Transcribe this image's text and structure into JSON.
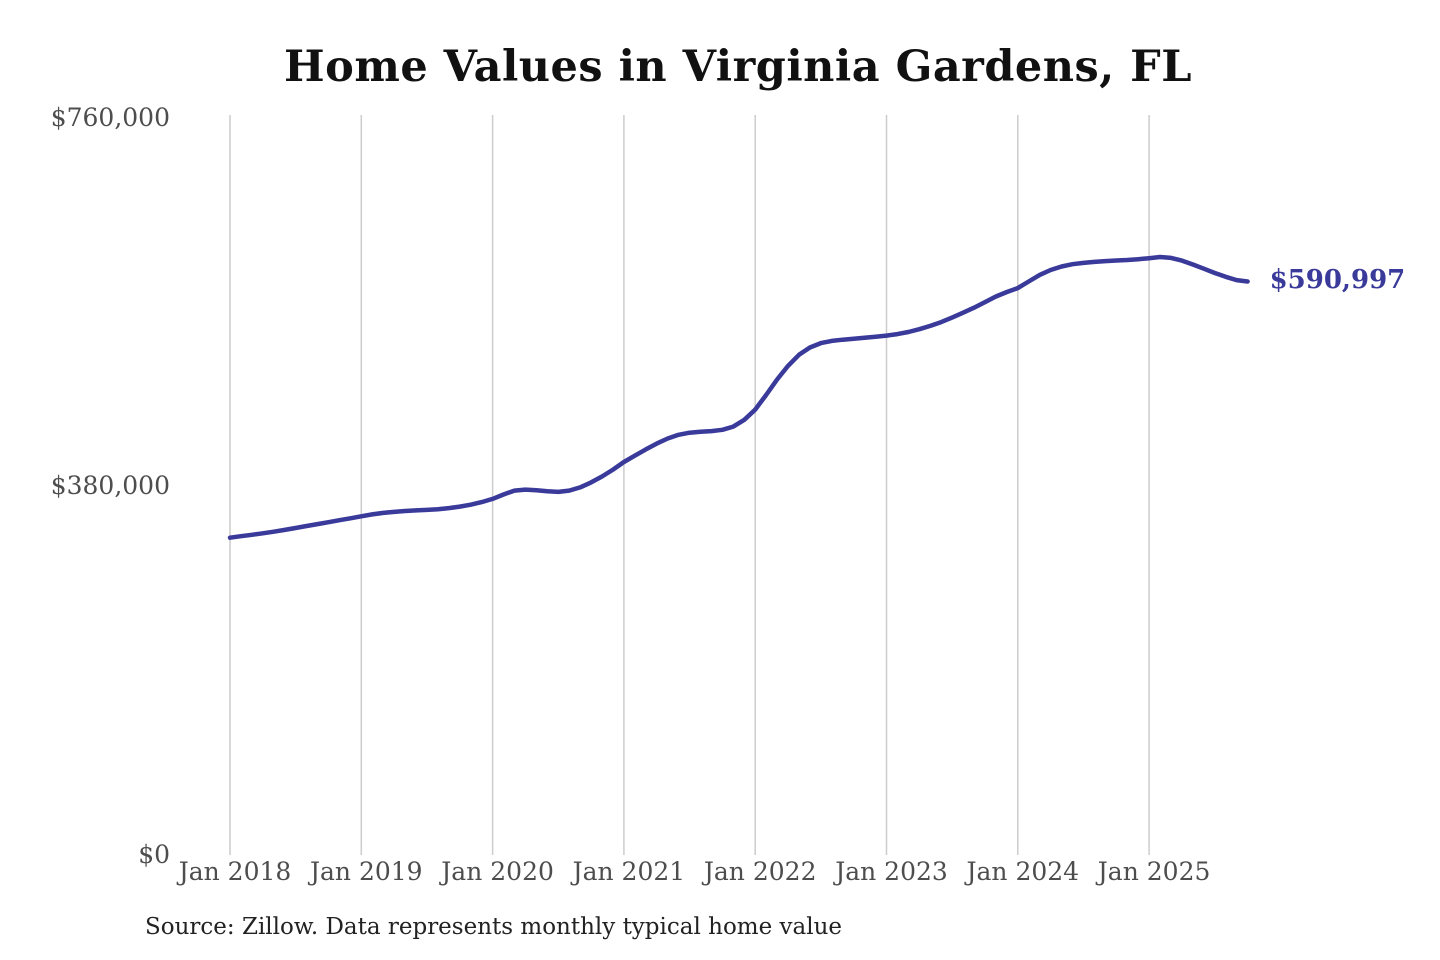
{
  "title": "Home Values in Virginia Gardens, FL",
  "source_note": "Source: Zillow. Data represents monthly typical home value",
  "end_label": "$590,997",
  "colors": {
    "line": "#3a3a9b",
    "grid": "#cccccc",
    "tick_text": "#4d4d4d",
    "title_text": "#111111",
    "source_text": "#222222",
    "annotation_text": "#3a3a9b",
    "background": "#ffffff"
  },
  "chart_data": {
    "type": "line",
    "title": "Home Values in Virginia Gardens, FL",
    "series_name": "Monthly typical home value",
    "xlabel": "",
    "ylabel": "",
    "ylim": [
      0,
      760000
    ],
    "grid": "vertical-only",
    "legend": "none",
    "y_ticks": [
      {
        "value": 0,
        "label": "$0"
      },
      {
        "value": 380000,
        "label": "$380,000"
      },
      {
        "value": 760000,
        "label": "$760,000"
      }
    ],
    "x_ticks": [
      {
        "month_index": 0,
        "label": "Jan 2018"
      },
      {
        "month_index": 12,
        "label": "Jan 2019"
      },
      {
        "month_index": 24,
        "label": "Jan 2020"
      },
      {
        "month_index": 36,
        "label": "Jan 2021"
      },
      {
        "month_index": 48,
        "label": "Jan 2022"
      },
      {
        "month_index": 60,
        "label": "Jan 2023"
      },
      {
        "month_index": 72,
        "label": "Jan 2024"
      },
      {
        "month_index": 84,
        "label": "Jan 2025"
      }
    ],
    "annotation": {
      "text": "$590,997",
      "value": 590997,
      "at": "last-point"
    },
    "x": [
      "2018-01",
      "2018-02",
      "2018-03",
      "2018-04",
      "2018-05",
      "2018-06",
      "2018-07",
      "2018-08",
      "2018-09",
      "2018-10",
      "2018-11",
      "2018-12",
      "2019-01",
      "2019-02",
      "2019-03",
      "2019-04",
      "2019-05",
      "2019-06",
      "2019-07",
      "2019-08",
      "2019-09",
      "2019-10",
      "2019-11",
      "2019-12",
      "2020-01",
      "2020-02",
      "2020-03",
      "2020-04",
      "2020-05",
      "2020-06",
      "2020-07",
      "2020-08",
      "2020-09",
      "2020-10",
      "2020-11",
      "2020-12",
      "2021-01",
      "2021-02",
      "2021-03",
      "2021-04",
      "2021-05",
      "2021-06",
      "2021-07",
      "2021-08",
      "2021-09",
      "2021-10",
      "2021-11",
      "2021-12",
      "2022-01",
      "2022-02",
      "2022-03",
      "2022-04",
      "2022-05",
      "2022-06",
      "2022-07",
      "2022-08",
      "2022-09",
      "2022-10",
      "2022-11",
      "2022-12",
      "2023-01",
      "2023-02",
      "2023-03",
      "2023-04",
      "2023-05",
      "2023-06",
      "2023-07",
      "2023-08",
      "2023-09",
      "2023-10",
      "2023-11",
      "2023-12",
      "2024-01",
      "2024-02",
      "2024-03",
      "2024-04",
      "2024-05",
      "2024-06",
      "2024-07",
      "2024-08",
      "2024-09",
      "2024-10",
      "2024-11",
      "2024-12",
      "2025-01",
      "2025-02",
      "2025-03",
      "2025-04",
      "2025-05",
      "2025-06",
      "2025-07",
      "2025-08",
      "2025-09",
      "2025-10"
    ],
    "values": [
      327000,
      328500,
      330000,
      331500,
      333200,
      335000,
      337000,
      339000,
      341000,
      343000,
      345000,
      347000,
      349000,
      351000,
      352500,
      353600,
      354500,
      355100,
      355600,
      356400,
      357500,
      359000,
      361000,
      363700,
      367000,
      371500,
      375500,
      376500,
      375800,
      374800,
      374200,
      375500,
      378800,
      384000,
      390000,
      397200,
      405000,
      411500,
      418000,
      424000,
      429200,
      433000,
      435200,
      436200,
      436800,
      438200,
      441500,
      448500,
      459000,
      474000,
      490000,
      504000,
      515500,
      523000,
      527500,
      529800,
      531000,
      532000,
      533000,
      534000,
      535200,
      536800,
      539000,
      541800,
      545200,
      549200,
      553800,
      558800,
      564000,
      569800,
      575500,
      580200,
      584200,
      591000,
      597800,
      602800,
      606500,
      608800,
      610200,
      611200,
      612000,
      612600,
      613200,
      614000,
      615000,
      616200,
      615300,
      612500,
      608500,
      604200,
      599800,
      595800,
      592400,
      590997
    ]
  }
}
